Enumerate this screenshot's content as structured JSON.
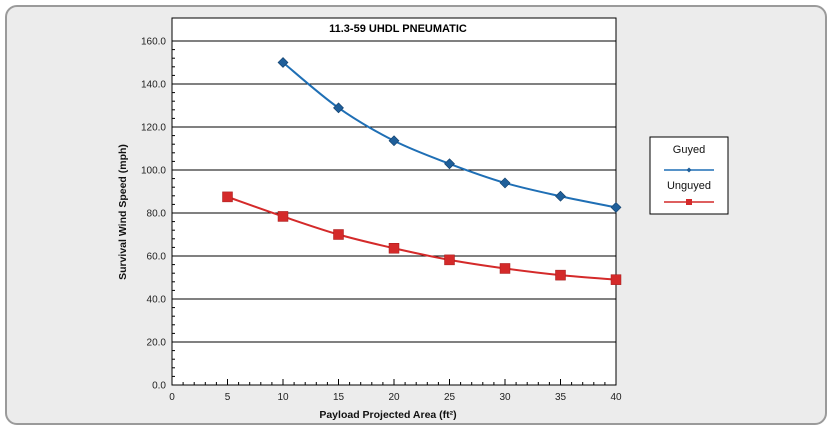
{
  "chart_data": {
    "type": "line",
    "title": "11.3-59 UHDL PNEUMATIC",
    "xlabel": "Payload Projected Area (ft²)",
    "ylabel": "Survival Wind Speed (mph)",
    "xlim": [
      0,
      40
    ],
    "ylim": [
      0,
      160
    ],
    "x_ticks": [
      "0",
      "5",
      "10",
      "15",
      "20",
      "25",
      "30",
      "35",
      "40"
    ],
    "y_ticks": [
      "0.0",
      "20.0",
      "40.0",
      "60.0",
      "80.0",
      "100.0",
      "120.0",
      "140.0",
      "160.0"
    ],
    "grid": "horizontal",
    "legend_position": "right",
    "series": [
      {
        "name": "Guyed",
        "color": "#1f6fb5",
        "marker": "diamond",
        "x": [
          10,
          15,
          20,
          25,
          30,
          35,
          40
        ],
        "y": [
          150.0,
          128.9,
          113.6,
          102.9,
          94.0,
          87.8,
          82.6
        ]
      },
      {
        "name": "Unguyed",
        "color": "#d42a2a",
        "marker": "square",
        "x": [
          5,
          10,
          15,
          20,
          25,
          30,
          35,
          40
        ],
        "y": [
          87.5,
          78.4,
          70.0,
          63.6,
          58.2,
          54.2,
          51.1,
          49.0
        ]
      }
    ]
  }
}
